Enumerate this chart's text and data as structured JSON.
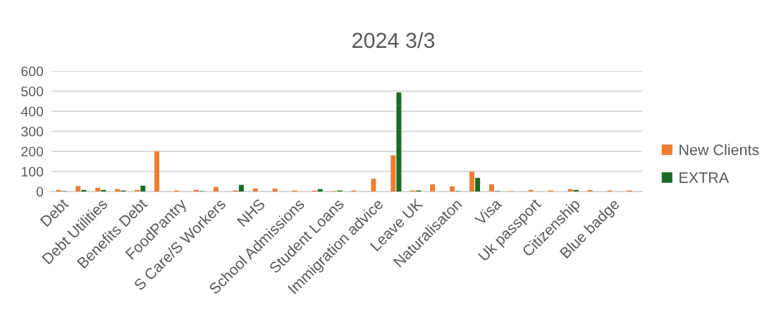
{
  "chart_data": {
    "type": "bar",
    "title": "2024 3/3",
    "categories": [
      "Debt",
      null,
      "Debt Utilities",
      null,
      "Benefits Debt",
      null,
      "FoodPantry",
      null,
      "S Care/S Workers",
      null,
      "NHS",
      null,
      "School Admissions",
      null,
      "Student Loans",
      null,
      "Immigration advice",
      null,
      "Leave UK",
      null,
      "Naturalisaton",
      null,
      "Visa",
      null,
      "Uk passport",
      null,
      "Citizenship",
      null,
      "Blue badge",
      null
    ],
    "series": [
      {
        "name": "New Clients",
        "color": "#ed7d31",
        "values": [
          8,
          27,
          19,
          12,
          8,
          200,
          5,
          8,
          22,
          5,
          15,
          15,
          5,
          5,
          2,
          5,
          64,
          180,
          5,
          36,
          26,
          99,
          36,
          2,
          8,
          5,
          12,
          8,
          5,
          5
        ]
      },
      {
        "name": "EXTRA",
        "color": "#196b24",
        "values": [
          2,
          8,
          8,
          5,
          29,
          null,
          null,
          2,
          null,
          33,
          null,
          null,
          null,
          12,
          5,
          null,
          null,
          494,
          5,
          null,
          2,
          68,
          2,
          null,
          null,
          null,
          8,
          null,
          null,
          null
        ]
      }
    ],
    "ylim": [
      0,
      600
    ],
    "yticks": [
      0,
      100,
      200,
      300,
      400,
      500,
      600
    ],
    "grid": "y",
    "legend": "right"
  }
}
